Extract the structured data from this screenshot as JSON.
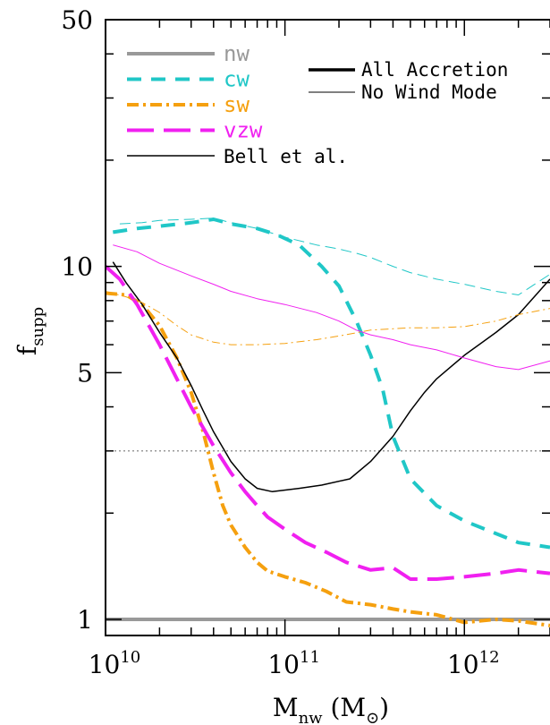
{
  "chart_data": {
    "type": "line",
    "x_scale": "log",
    "y_scale": "log",
    "xlim": [
      10000000000.0,
      3000000000000.0
    ],
    "ylim": [
      0.9,
      50
    ],
    "grid": false,
    "xlabel": {
      "main": "M",
      "sub": "nw",
      "unit": "(M",
      "unit_sub": "⊙",
      "unit_close": ")"
    },
    "ylabel": {
      "main": "f",
      "sub": "supp"
    },
    "x_ticks": [
      {
        "value": 10000000000.0,
        "base": "10",
        "exp": "10"
      },
      {
        "value": 100000000000.0,
        "base": "10",
        "exp": "11"
      },
      {
        "value": 1000000000000.0,
        "base": "10",
        "exp": "12"
      }
    ],
    "y_ticks": [
      {
        "value": 1,
        "label": "1"
      },
      {
        "value": 5,
        "label": "5"
      },
      {
        "value": 10,
        "label": "10"
      },
      {
        "value": 50,
        "label": "50"
      }
    ],
    "reference_line": {
      "y": 3.0,
      "style": "dotted",
      "color": "#777777"
    },
    "legend_models": [
      {
        "key": "nw",
        "label": "nw",
        "color": "#999999",
        "dash": "solid"
      },
      {
        "key": "cw",
        "label": "cw",
        "color": "#20c7c7",
        "dash": "dash"
      },
      {
        "key": "sw",
        "label": "sw",
        "color": "#f5a00f",
        "dash": "dashdot"
      },
      {
        "key": "vzw",
        "label": "vzw",
        "color": "#f020f0",
        "dash": "longdash"
      },
      {
        "key": "bell",
        "label": "Bell et al.",
        "color": "#000000",
        "dash": "solid"
      }
    ],
    "legend_styles": [
      {
        "label": "All Accretion",
        "width": "thick"
      },
      {
        "label": "No Wind Mode",
        "width": "thin"
      }
    ],
    "series": [
      {
        "name": "nw",
        "type": "all",
        "color": "#999999",
        "width": 4,
        "dash": "solid",
        "x": [
          10000000000.0,
          3000000000000.0
        ],
        "y": [
          1.0,
          1.0
        ]
      },
      {
        "name": "cw",
        "type": "all",
        "color": "#20c7c7",
        "width": 4,
        "dash": "dash",
        "x": [
          11000000000.0,
          15000000000.0,
          20000000000.0,
          30000000000.0,
          40000000000.0,
          50000000000.0,
          70000000000.0,
          90000000000.0,
          120000000000.0,
          160000000000.0,
          200000000000.0,
          250000000000.0,
          300000000000.0,
          350000000000.0,
          400000000000.0,
          500000000000.0,
          700000000000.0,
          1000000000000.0,
          1500000000000.0,
          2000000000000.0,
          3000000000000.0
        ],
        "y": [
          12.5,
          12.8,
          13.0,
          13.3,
          13.6,
          13.2,
          12.8,
          12.3,
          11.5,
          10.0,
          8.8,
          7.0,
          5.6,
          4.5,
          3.3,
          2.5,
          2.1,
          1.9,
          1.75,
          1.65,
          1.6
        ]
      },
      {
        "name": "sw",
        "type": "all",
        "color": "#f5a00f",
        "width": 4,
        "dash": "dashdot",
        "x": [
          10000000000.0,
          13000000000.0,
          16000000000.0,
          20000000000.0,
          25000000000.0,
          30000000000.0,
          35000000000.0,
          40000000000.0,
          45000000000.0,
          50000000000.0,
          60000000000.0,
          70000000000.0,
          80000000000.0,
          100000000000.0,
          130000000000.0,
          170000000000.0,
          220000000000.0,
          300000000000.0,
          400000000000.0,
          500000000000.0,
          700000000000.0,
          1000000000000.0,
          1500000000000.0,
          2000000000000.0,
          3000000000000.0
        ],
        "y": [
          8.4,
          8.3,
          7.8,
          6.8,
          5.5,
          4.4,
          3.4,
          2.6,
          2.1,
          1.85,
          1.6,
          1.45,
          1.37,
          1.32,
          1.27,
          1.2,
          1.12,
          1.1,
          1.07,
          1.05,
          1.03,
          0.98,
          1.0,
          0.99,
          0.96
        ]
      },
      {
        "name": "vzw",
        "type": "all",
        "color": "#f020f0",
        "width": 4,
        "dash": "longdash",
        "x": [
          10000000000.0,
          12000000000.0,
          15000000000.0,
          20000000000.0,
          25000000000.0,
          30000000000.0,
          40000000000.0,
          50000000000.0,
          60000000000.0,
          70000000000.0,
          80000000000.0,
          100000000000.0,
          130000000000.0,
          170000000000.0,
          220000000000.0,
          300000000000.0,
          400000000000.0,
          500000000000.0,
          700000000000.0,
          1000000000000.0,
          1500000000000.0,
          2000000000000.0,
          3000000000000.0
        ],
        "y": [
          10.0,
          9.2,
          7.8,
          6.0,
          4.8,
          4.0,
          3.1,
          2.6,
          2.3,
          2.1,
          1.95,
          1.8,
          1.65,
          1.55,
          1.45,
          1.38,
          1.4,
          1.3,
          1.3,
          1.32,
          1.35,
          1.38,
          1.35
        ]
      },
      {
        "name": "Bell et al.",
        "type": "all",
        "color": "#000000",
        "width": 1.5,
        "dash": "solid",
        "x": [
          11000000000.0,
          13000000000.0,
          16000000000.0,
          20000000000.0,
          25000000000.0,
          30000000000.0,
          35000000000.0,
          40000000000.0,
          50000000000.0,
          60000000000.0,
          70000000000.0,
          85000000000.0,
          120000000000.0,
          160000000000.0,
          230000000000.0,
          300000000000.0,
          400000000000.0,
          500000000000.0,
          600000000000.0,
          700000000000.0,
          1000000000000.0,
          1500000000000.0,
          2000000000000.0,
          3000000000000.0
        ],
        "y": [
          10.3,
          9.0,
          7.8,
          6.5,
          5.5,
          4.6,
          3.9,
          3.4,
          2.8,
          2.5,
          2.35,
          2.3,
          2.35,
          2.4,
          2.5,
          2.8,
          3.3,
          3.9,
          4.4,
          4.8,
          5.6,
          6.5,
          7.3,
          9.2
        ]
      },
      {
        "name": "cw",
        "type": "nowind",
        "color": "#20c7c7",
        "width": 1,
        "dash": "thin-dash",
        "x": [
          12000000000.0,
          16000000000.0,
          20000000000.0,
          30000000000.0,
          40000000000.0,
          50000000000.0,
          70000000000.0,
          100000000000.0,
          150000000000.0,
          200000000000.0,
          250000000000.0,
          300000000000.0,
          400000000000.0,
          500000000000.0,
          700000000000.0,
          1000000000000.0,
          1500000000000.0,
          2000000000000.0,
          3000000000000.0
        ],
        "y": [
          13.2,
          13.3,
          13.5,
          13.6,
          13.7,
          13.3,
          12.8,
          12.1,
          11.5,
          11.2,
          10.9,
          10.6,
          10.0,
          9.6,
          9.2,
          8.9,
          8.5,
          8.3,
          9.5
        ]
      },
      {
        "name": "sw",
        "type": "nowind",
        "color": "#f5a00f",
        "width": 1,
        "dash": "thin-dashdot",
        "x": [
          10000000000.0,
          13000000000.0,
          16000000000.0,
          20000000000.0,
          25000000000.0,
          30000000000.0,
          40000000000.0,
          50000000000.0,
          70000000000.0,
          100000000000.0,
          150000000000.0,
          200000000000.0,
          300000000000.0,
          500000000000.0,
          700000000000.0,
          1000000000000.0,
          1500000000000.0,
          2000000000000.0,
          3000000000000.0
        ],
        "y": [
          8.5,
          8.2,
          7.9,
          7.4,
          6.8,
          6.4,
          6.1,
          6.0,
          6.0,
          6.05,
          6.2,
          6.35,
          6.6,
          6.7,
          6.7,
          6.75,
          7.0,
          7.3,
          7.6
        ]
      },
      {
        "name": "vzw",
        "type": "nowind",
        "color": "#f020f0",
        "width": 1,
        "dash": "solid",
        "x": [
          11000000000.0,
          15000000000.0,
          20000000000.0,
          30000000000.0,
          40000000000.0,
          50000000000.0,
          70000000000.0,
          100000000000.0,
          150000000000.0,
          200000000000.0,
          250000000000.0,
          300000000000.0,
          400000000000.0,
          500000000000.0,
          700000000000.0,
          1000000000000.0,
          1500000000000.0,
          2000000000000.0,
          3000000000000.0
        ],
        "y": [
          11.5,
          11.0,
          10.2,
          9.4,
          8.9,
          8.5,
          8.1,
          7.8,
          7.4,
          7.0,
          6.6,
          6.4,
          6.2,
          6.0,
          5.8,
          5.5,
          5.2,
          5.1,
          5.4
        ]
      }
    ]
  }
}
